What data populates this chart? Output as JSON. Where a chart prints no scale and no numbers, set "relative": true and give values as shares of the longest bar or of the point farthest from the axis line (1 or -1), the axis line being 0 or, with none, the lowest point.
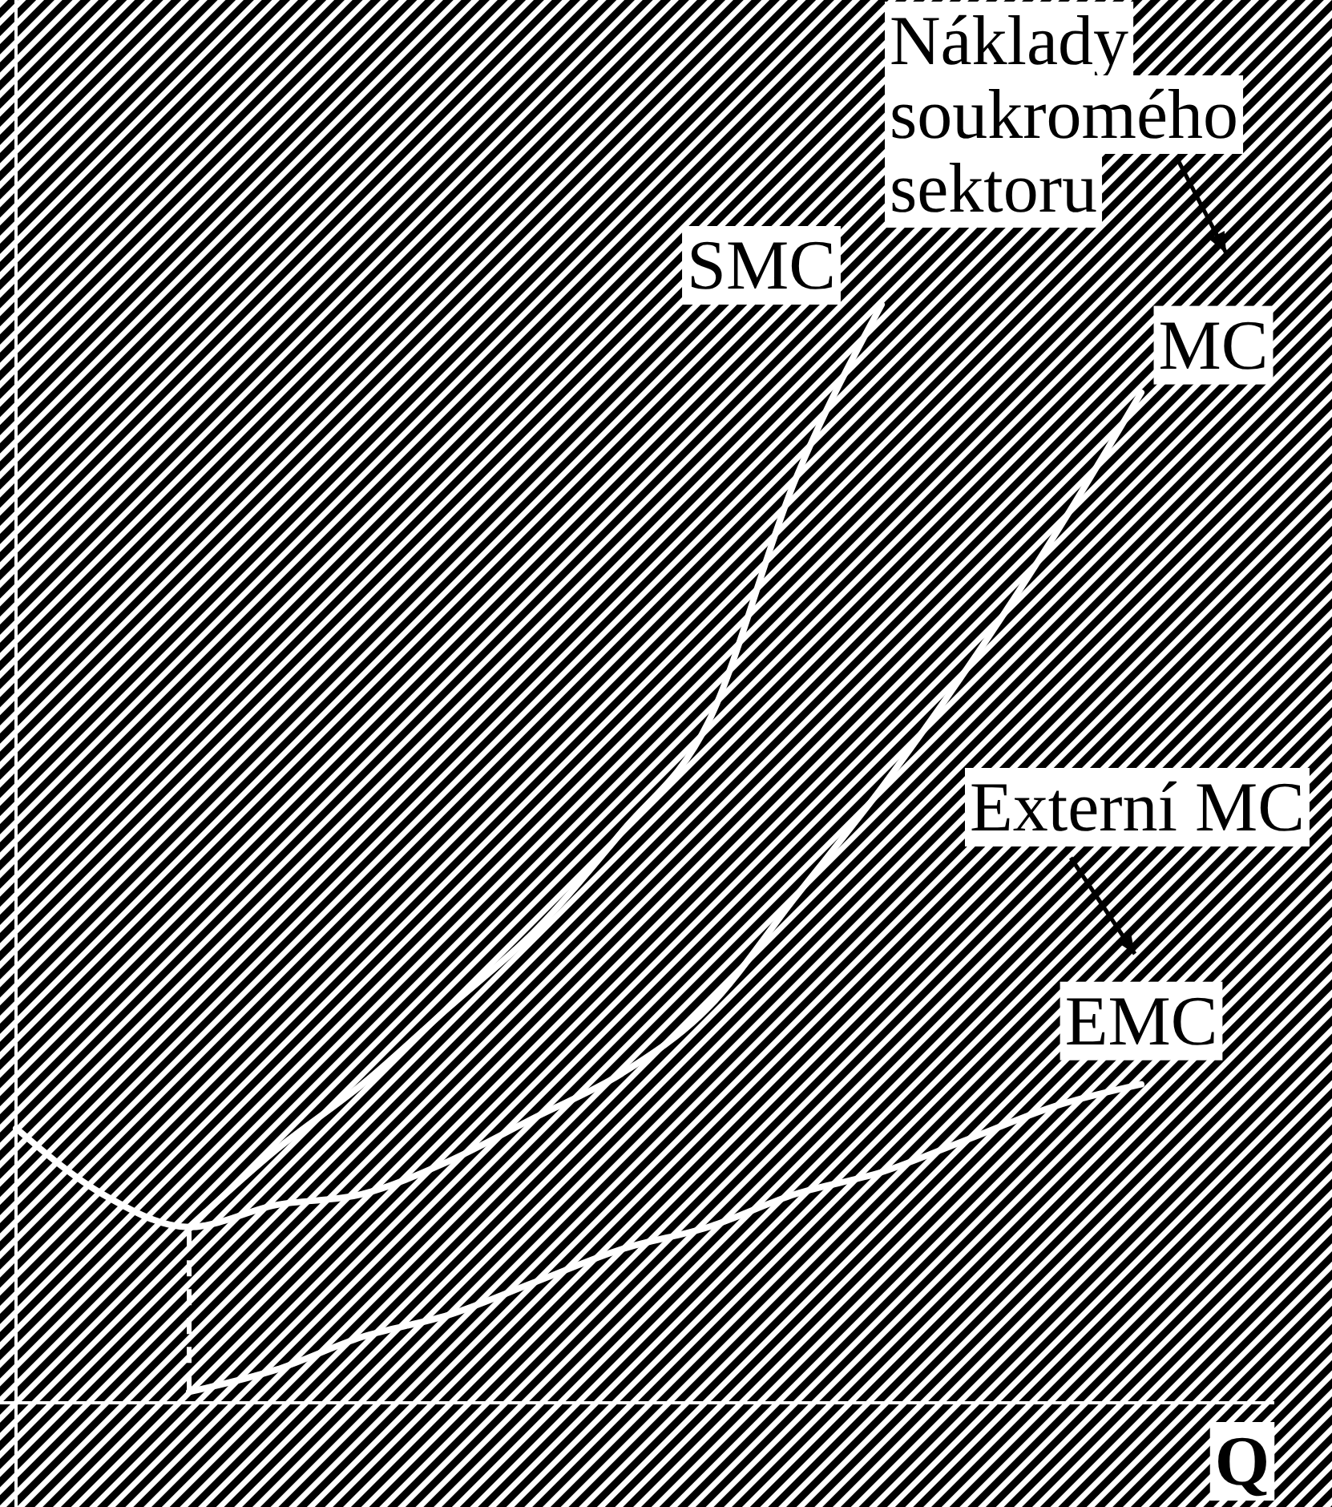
{
  "chart_data": {
    "type": "line",
    "relative": true,
    "xlabel": "Q",
    "categories": [
      null,
      null,
      null,
      null,
      null,
      null,
      null,
      null,
      null,
      null,
      null,
      null,
      null,
      null,
      null
    ],
    "series": [
      {
        "name": "SMC",
        "color": "#ffffff",
        "values": [
          null,
          null,
          0.16,
          0.23,
          0.29,
          0.36,
          0.43,
          0.52,
          0.62,
          0.84,
          1.0,
          null,
          null,
          null,
          null
        ]
      },
      {
        "name": "MC",
        "color": "#ffffff",
        "values": [
          0.25,
          0.19,
          0.16,
          0.18,
          0.19,
          0.22,
          0.26,
          0.3,
          0.36,
          0.46,
          0.56,
          0.67,
          0.79,
          0.92,
          null
        ]
      },
      {
        "name": "EMC",
        "color": "#ffffff",
        "values": [
          null,
          null,
          0.01,
          0.03,
          0.06,
          0.08,
          0.11,
          0.14,
          0.16,
          0.19,
          0.21,
          0.24,
          0.27,
          0.29,
          null
        ]
      }
    ],
    "annotations": [
      "Náklady soukromého sektoru",
      "Externí MC"
    ],
    "legend": false,
    "marker": "none",
    "line_style": "solid"
  }
}
